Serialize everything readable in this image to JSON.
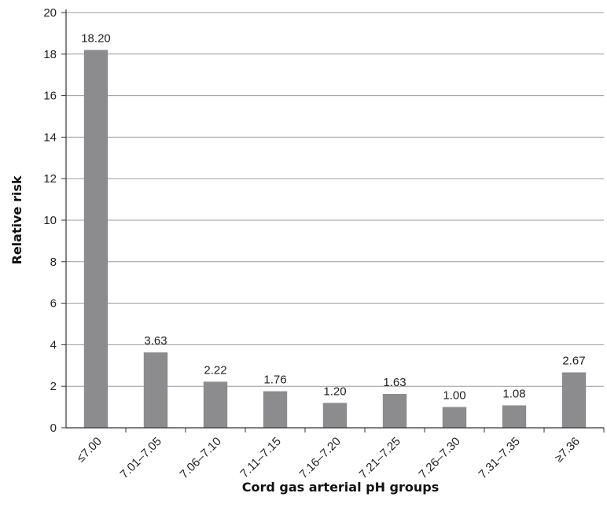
{
  "chart_data": {
    "type": "bar",
    "title": "",
    "xlabel": "Cord gas arterial pH groups",
    "ylabel": "Relative risk",
    "categories": [
      "≤7.00",
      "7.01–7.05",
      "7.06–7.10",
      "7.11–7.15",
      "7.16–7.20",
      "7.21–7.25",
      "7.26–7.30",
      "7.31–7.35",
      "≥7.36"
    ],
    "values": [
      18.2,
      3.63,
      2.22,
      1.76,
      1.2,
      1.63,
      1.0,
      1.08,
      2.67
    ],
    "value_labels": [
      "18.20",
      "3.63",
      "2.22",
      "1.76",
      "1.20",
      "1.63",
      "1.00",
      "1.08",
      "2.67"
    ],
    "ylim": [
      0,
      20
    ],
    "yticks": [
      0,
      2,
      4,
      6,
      8,
      10,
      12,
      14,
      16,
      18,
      20
    ],
    "grid": true,
    "legend": "none",
    "bar_color": "#8c8c8e",
    "grid_color": "#9a9a9a"
  }
}
